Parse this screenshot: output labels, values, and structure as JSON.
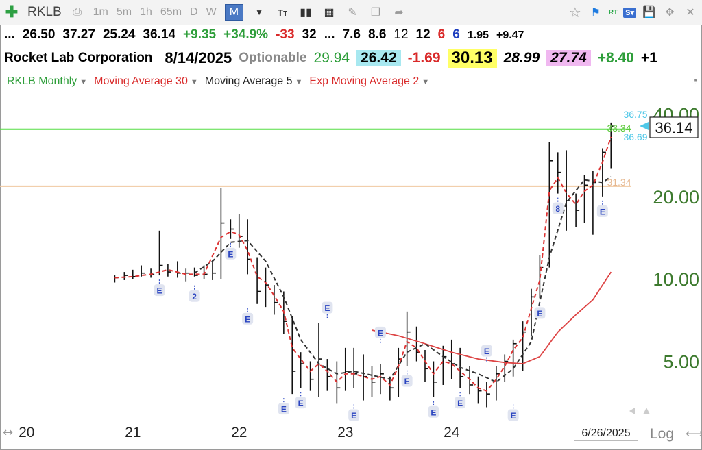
{
  "toolbar": {
    "symbol": "RKLB",
    "periods": [
      "1m",
      "5m",
      "1h",
      "65m",
      "D",
      "W",
      "M"
    ],
    "active_period": "M",
    "rt_label": "RT",
    "s_label": "S"
  },
  "quote_row": [
    "...",
    "26.50",
    "37.27",
    "25.24",
    "36.14",
    "+9.35",
    "+34.9%",
    "-33",
    "32",
    "...",
    "7.6",
    "8.6",
    "12",
    "12",
    "6",
    "6",
    "1.95",
    "+9.47"
  ],
  "quote_row_colors": [
    "#000",
    "#000",
    "#000",
    "#000",
    "#000",
    "#2e9e3a",
    "#2e9e3a",
    "#d92a2a",
    "#000",
    "#000",
    "#000",
    "#000",
    "#000",
    "#000",
    "#d92a2a",
    "#1f3fbf",
    "#000",
    "#000"
  ],
  "info_row": {
    "company": "Rocket Lab Corporation",
    "date": "8/14/2025",
    "optionable": "Optionable",
    "v1": "29.94",
    "v2": "26.42",
    "v3": "-1.69",
    "v4": "30.13",
    "v5": "28.99",
    "v6": "27.74",
    "v7": "+8.40",
    "v8": "+1"
  },
  "indicators": [
    {
      "label": "RKLB Monthly",
      "color": "#2e9e3a"
    },
    {
      "label": "Moving Average 30",
      "color": "#d92a2a"
    },
    {
      "label": "Moving Average 5",
      "color": "#222222"
    },
    {
      "label": "Exp Moving Average 2",
      "color": "#d92a2a"
    }
  ],
  "chart_data": {
    "type": "line",
    "scale": "log",
    "y_ticks": [
      5,
      10,
      20,
      40
    ],
    "y_tick_labels": [
      "5.00",
      "10.00",
      "20.00",
      "40.00"
    ],
    "x_tick_labels": [
      "20",
      "21",
      "22",
      "23",
      "24"
    ],
    "x_tick_positions": [
      2020,
      2021,
      2022,
      2023,
      2024
    ],
    "ylim": [
      3.2,
      44
    ],
    "xlim": [
      2019.75,
      2025.75
    ],
    "last_price_label": "36.14",
    "right_labels": [
      "36.75",
      "33.34",
      "36.69",
      "31.34"
    ],
    "date_label": "6/26/2025",
    "log_label": "Log",
    "grid": false,
    "horizontal_lines": [
      {
        "value": 35.2,
        "color": "#55dd44"
      },
      {
        "value": 21.8,
        "color": "#f0c8a0"
      }
    ],
    "bars": [
      {
        "t": 2020.83,
        "h": 10.3,
        "l": 9.7,
        "c": 10.1
      },
      {
        "t": 2020.92,
        "h": 10.6,
        "l": 9.9,
        "c": 10.3
      },
      {
        "t": 2021.0,
        "h": 10.8,
        "l": 10.0,
        "c": 10.2
      },
      {
        "t": 2021.08,
        "h": 11.2,
        "l": 10.2,
        "c": 10.5
      },
      {
        "t": 2021.17,
        "h": 10.9,
        "l": 10.1,
        "c": 10.4
      },
      {
        "t": 2021.25,
        "h": 15.0,
        "l": 10.3,
        "c": 11.2
      },
      {
        "t": 2021.33,
        "h": 11.3,
        "l": 10.2,
        "c": 10.6
      },
      {
        "t": 2021.42,
        "h": 11.6,
        "l": 10.1,
        "c": 10.5
      },
      {
        "t": 2021.5,
        "h": 10.9,
        "l": 9.8,
        "c": 10.5
      },
      {
        "t": 2021.58,
        "h": 11.0,
        "l": 10.2,
        "c": 10.3
      },
      {
        "t": 2021.67,
        "h": 11.2,
        "l": 10.0,
        "c": 10.4
      },
      {
        "t": 2021.75,
        "h": 11.7,
        "l": 9.9,
        "c": 10.5
      },
      {
        "t": 2021.83,
        "h": 21.5,
        "l": 10.0,
        "c": 16.0
      },
      {
        "t": 2021.92,
        "h": 16.5,
        "l": 14.0,
        "c": 15.2
      },
      {
        "t": 2022.0,
        "h": 17.3,
        "l": 13.0,
        "c": 14.3
      },
      {
        "t": 2022.08,
        "h": 16.5,
        "l": 10.4,
        "c": 11.8
      },
      {
        "t": 2022.17,
        "h": 12.0,
        "l": 8.1,
        "c": 9.0
      },
      {
        "t": 2022.25,
        "h": 11.0,
        "l": 7.9,
        "c": 9.5
      },
      {
        "t": 2022.33,
        "h": 9.5,
        "l": 7.4,
        "c": 8.2
      },
      {
        "t": 2022.42,
        "h": 9.0,
        "l": 6.3,
        "c": 7.0
      },
      {
        "t": 2022.5,
        "h": 7.3,
        "l": 3.8,
        "c": 4.6
      },
      {
        "t": 2022.58,
        "h": 5.4,
        "l": 4.0,
        "c": 4.9
      },
      {
        "t": 2022.67,
        "h": 5.0,
        "l": 3.9,
        "c": 4.3
      },
      {
        "t": 2022.75,
        "h": 6.9,
        "l": 3.7,
        "c": 5.1
      },
      {
        "t": 2022.83,
        "h": 5.1,
        "l": 3.9,
        "c": 4.4
      },
      {
        "t": 2022.92,
        "h": 5.0,
        "l": 3.5,
        "c": 4.0
      },
      {
        "t": 2023.0,
        "h": 5.6,
        "l": 3.9,
        "c": 4.6
      },
      {
        "t": 2023.08,
        "h": 5.6,
        "l": 4.0,
        "c": 4.5
      },
      {
        "t": 2023.17,
        "h": 5.3,
        "l": 3.6,
        "c": 4.4
      },
      {
        "t": 2023.25,
        "h": 4.8,
        "l": 3.7,
        "c": 4.2
      },
      {
        "t": 2023.33,
        "h": 4.9,
        "l": 3.8,
        "c": 4.5
      },
      {
        "t": 2023.42,
        "h": 4.4,
        "l": 3.6,
        "c": 4.0
      },
      {
        "t": 2023.5,
        "h": 5.6,
        "l": 3.7,
        "c": 5.1
      },
      {
        "t": 2023.58,
        "h": 7.6,
        "l": 4.8,
        "c": 6.4
      },
      {
        "t": 2023.67,
        "h": 6.7,
        "l": 5.0,
        "c": 5.4
      },
      {
        "t": 2023.75,
        "h": 5.5,
        "l": 4.2,
        "c": 4.7
      },
      {
        "t": 2023.83,
        "h": 5.0,
        "l": 3.7,
        "c": 4.2
      },
      {
        "t": 2023.92,
        "h": 5.7,
        "l": 4.1,
        "c": 5.2
      },
      {
        "t": 2024.0,
        "h": 6.0,
        "l": 4.3,
        "c": 4.9
      },
      {
        "t": 2024.08,
        "h": 5.6,
        "l": 4.0,
        "c": 4.4
      },
      {
        "t": 2024.17,
        "h": 4.8,
        "l": 3.8,
        "c": 4.1
      },
      {
        "t": 2024.25,
        "h": 4.4,
        "l": 3.5,
        "c": 3.9
      },
      {
        "t": 2024.33,
        "h": 4.2,
        "l": 3.4,
        "c": 3.8
      },
      {
        "t": 2024.42,
        "h": 4.8,
        "l": 3.6,
        "c": 4.5
      },
      {
        "t": 2024.5,
        "h": 5.3,
        "l": 4.2,
        "c": 5.0
      },
      {
        "t": 2024.58,
        "h": 6.0,
        "l": 4.4,
        "c": 5.8
      },
      {
        "t": 2024.67,
        "h": 7.0,
        "l": 4.6,
        "c": 6.4
      },
      {
        "t": 2024.75,
        "h": 9.2,
        "l": 6.2,
        "c": 8.6
      },
      {
        "t": 2024.83,
        "h": 12.2,
        "l": 8.5,
        "c": 11.0
      },
      {
        "t": 2024.92,
        "h": 31.5,
        "l": 11.0,
        "c": 27.0
      },
      {
        "t": 2025.0,
        "h": 29.0,
        "l": 20.5,
        "c": 24.5
      },
      {
        "t": 2025.08,
        "h": 29.5,
        "l": 15.0,
        "c": 19.3
      },
      {
        "t": 2025.17,
        "h": 20.5,
        "l": 15.5,
        "c": 17.8
      },
      {
        "t": 2025.25,
        "h": 24.0,
        "l": 16.0,
        "c": 22.0
      },
      {
        "t": 2025.33,
        "h": 24.8,
        "l": 14.5,
        "c": 22.5
      },
      {
        "t": 2025.42,
        "h": 30.0,
        "l": 20.0,
        "c": 29.0
      },
      {
        "t": 2025.5,
        "h": 37.27,
        "l": 25.24,
        "c": 36.14
      }
    ],
    "series": [
      {
        "name": "Moving Average 30",
        "color": "#dd4444",
        "points": [
          [
            2023.25,
            6.5
          ],
          [
            2023.5,
            6.2
          ],
          [
            2023.75,
            5.8
          ],
          [
            2024.0,
            5.4
          ],
          [
            2024.25,
            5.1
          ],
          [
            2024.5,
            4.95
          ],
          [
            2024.67,
            4.9
          ],
          [
            2024.83,
            5.2
          ],
          [
            2025.0,
            6.4
          ],
          [
            2025.17,
            7.4
          ],
          [
            2025.33,
            8.4
          ],
          [
            2025.5,
            10.6
          ]
        ]
      },
      {
        "name": "Moving Average 5",
        "color": "#333333",
        "points": [
          [
            2021.58,
            10.5
          ],
          [
            2021.75,
            11.6
          ],
          [
            2021.92,
            13.6
          ],
          [
            2022.08,
            13.8
          ],
          [
            2022.25,
            11.6
          ],
          [
            2022.42,
            8.6
          ],
          [
            2022.58,
            6.0
          ],
          [
            2022.75,
            4.9
          ],
          [
            2022.92,
            4.5
          ],
          [
            2023.08,
            4.6
          ],
          [
            2023.25,
            4.45
          ],
          [
            2023.42,
            4.3
          ],
          [
            2023.58,
            5.4
          ],
          [
            2023.75,
            5.8
          ],
          [
            2023.92,
            5.2
          ],
          [
            2024.08,
            4.75
          ],
          [
            2024.25,
            4.5
          ],
          [
            2024.42,
            4.2
          ],
          [
            2024.58,
            4.7
          ],
          [
            2024.75,
            5.9
          ],
          [
            2024.92,
            12.0
          ],
          [
            2025.08,
            19.0
          ],
          [
            2025.25,
            23.0
          ],
          [
            2025.42,
            22.5
          ],
          [
            2025.5,
            23.6
          ]
        ]
      },
      {
        "name": "Exp Moving Average 2",
        "color": "#dd3333",
        "points": [
          [
            2020.83,
            10.1
          ],
          [
            2021.0,
            10.2
          ],
          [
            2021.17,
            10.4
          ],
          [
            2021.33,
            10.8
          ],
          [
            2021.5,
            10.4
          ],
          [
            2021.67,
            10.4
          ],
          [
            2021.83,
            14.2
          ],
          [
            2021.92,
            14.9
          ],
          [
            2022.0,
            14.5
          ],
          [
            2022.08,
            12.7
          ],
          [
            2022.17,
            10.2
          ],
          [
            2022.25,
            9.7
          ],
          [
            2022.33,
            8.7
          ],
          [
            2022.42,
            7.6
          ],
          [
            2022.5,
            5.6
          ],
          [
            2022.58,
            5.1
          ],
          [
            2022.67,
            4.6
          ],
          [
            2022.75,
            4.9
          ],
          [
            2022.83,
            4.6
          ],
          [
            2022.92,
            4.2
          ],
          [
            2023.0,
            4.5
          ],
          [
            2023.08,
            4.5
          ],
          [
            2023.17,
            4.4
          ],
          [
            2023.25,
            4.3
          ],
          [
            2023.33,
            4.4
          ],
          [
            2023.42,
            4.1
          ],
          [
            2023.5,
            4.8
          ],
          [
            2023.58,
            5.9
          ],
          [
            2023.67,
            5.6
          ],
          [
            2023.75,
            5.0
          ],
          [
            2023.83,
            4.5
          ],
          [
            2023.92,
            5.0
          ],
          [
            2024.0,
            4.9
          ],
          [
            2024.08,
            4.6
          ],
          [
            2024.17,
            4.3
          ],
          [
            2024.25,
            4.0
          ],
          [
            2024.33,
            3.9
          ],
          [
            2024.42,
            4.3
          ],
          [
            2024.5,
            4.8
          ],
          [
            2024.58,
            5.5
          ],
          [
            2024.67,
            6.1
          ],
          [
            2024.75,
            7.8
          ],
          [
            2024.83,
            9.9
          ],
          [
            2024.92,
            21.0
          ],
          [
            2025.0,
            23.4
          ],
          [
            2025.08,
            20.6
          ],
          [
            2025.17,
            18.7
          ],
          [
            2025.25,
            20.9
          ],
          [
            2025.33,
            22.0
          ],
          [
            2025.42,
            26.7
          ],
          [
            2025.5,
            33.0
          ]
        ]
      }
    ],
    "events": [
      {
        "t": 2021.25,
        "label": "E",
        "pos": "below",
        "v": 10.3
      },
      {
        "t": 2021.58,
        "label": "2",
        "pos": "below",
        "v": 9.8
      },
      {
        "t": 2021.92,
        "label": "E",
        "pos": "below",
        "v": 14.0
      },
      {
        "t": 2022.08,
        "label": "E",
        "pos": "below",
        "v": 8.1
      },
      {
        "t": 2022.42,
        "label": "E",
        "pos": "below",
        "v": 3.8
      },
      {
        "t": 2022.58,
        "label": "E",
        "pos": "below",
        "v": 4.0
      },
      {
        "t": 2022.83,
        "label": "E",
        "pos": "above",
        "v": 6.9
      },
      {
        "t": 2023.08,
        "label": "E",
        "pos": "below",
        "v": 3.6
      },
      {
        "t": 2023.33,
        "label": "E",
        "pos": "above",
        "v": 5.6
      },
      {
        "t": 2023.58,
        "label": "E",
        "pos": "below",
        "v": 4.8
      },
      {
        "t": 2023.83,
        "label": "E",
        "pos": "below",
        "v": 3.7
      },
      {
        "t": 2024.08,
        "label": "E",
        "pos": "below",
        "v": 4.0
      },
      {
        "t": 2024.33,
        "label": "E",
        "pos": "above",
        "v": 4.8
      },
      {
        "t": 2024.58,
        "label": "E",
        "pos": "below",
        "v": 3.6
      },
      {
        "t": 2024.83,
        "label": "E",
        "pos": "below",
        "v": 8.5
      },
      {
        "t": 2025.0,
        "label": "8",
        "pos": "below",
        "v": 20.5
      },
      {
        "t": 2025.42,
        "label": "E",
        "pos": "below",
        "v": 20.0
      }
    ]
  }
}
